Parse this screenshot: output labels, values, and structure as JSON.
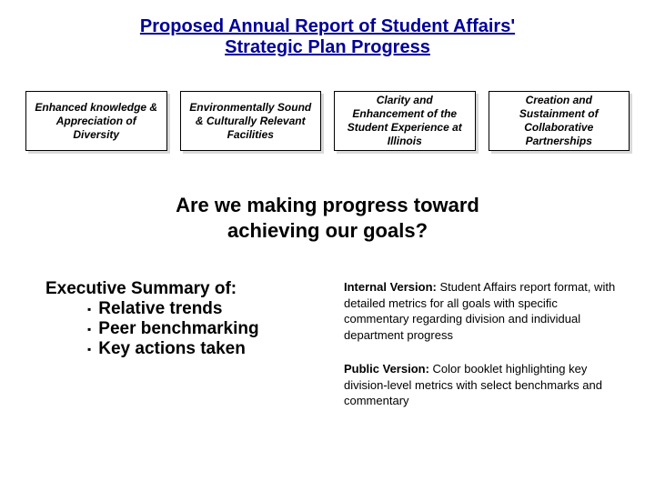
{
  "title": {
    "line1": "Proposed Annual Report of Student Affairs'",
    "line2": "Strategic Plan Progress",
    "color": "#000099",
    "fontsize": 20
  },
  "goals": {
    "box_fontsize": 12,
    "box_color": "#000000",
    "border_color": "#000000",
    "shadow_color": "rgba(0,0,0,0.15)",
    "items": [
      "Enhanced knowledge & Appreciation of Diversity",
      "Environmentally Sound & Culturally Relevant Facilities",
      "Clarity and Enhancement of the Student Experience at Illinois",
      "Creation and Sustainment of Collaborative Partnerships"
    ]
  },
  "question": {
    "line1": "Are we making progress toward",
    "line2": "achieving our goals?",
    "fontsize": 22,
    "color": "#000000"
  },
  "exec": {
    "heading": "Executive Summary of:",
    "items": [
      "Relative trends",
      "Peer benchmarking",
      "Key actions taken"
    ],
    "fontsize": 19,
    "color": "#000000"
  },
  "versions": {
    "fontsize": 13,
    "color": "#000000",
    "internal": {
      "label": "Internal Version:",
      "text": " Student Affairs report format, with detailed metrics for all goals with specific commentary regarding division and individual department progress"
    },
    "public": {
      "label": "Public Version:",
      "text": " Color booklet highlighting key division-level metrics with select benchmarks and commentary"
    }
  }
}
